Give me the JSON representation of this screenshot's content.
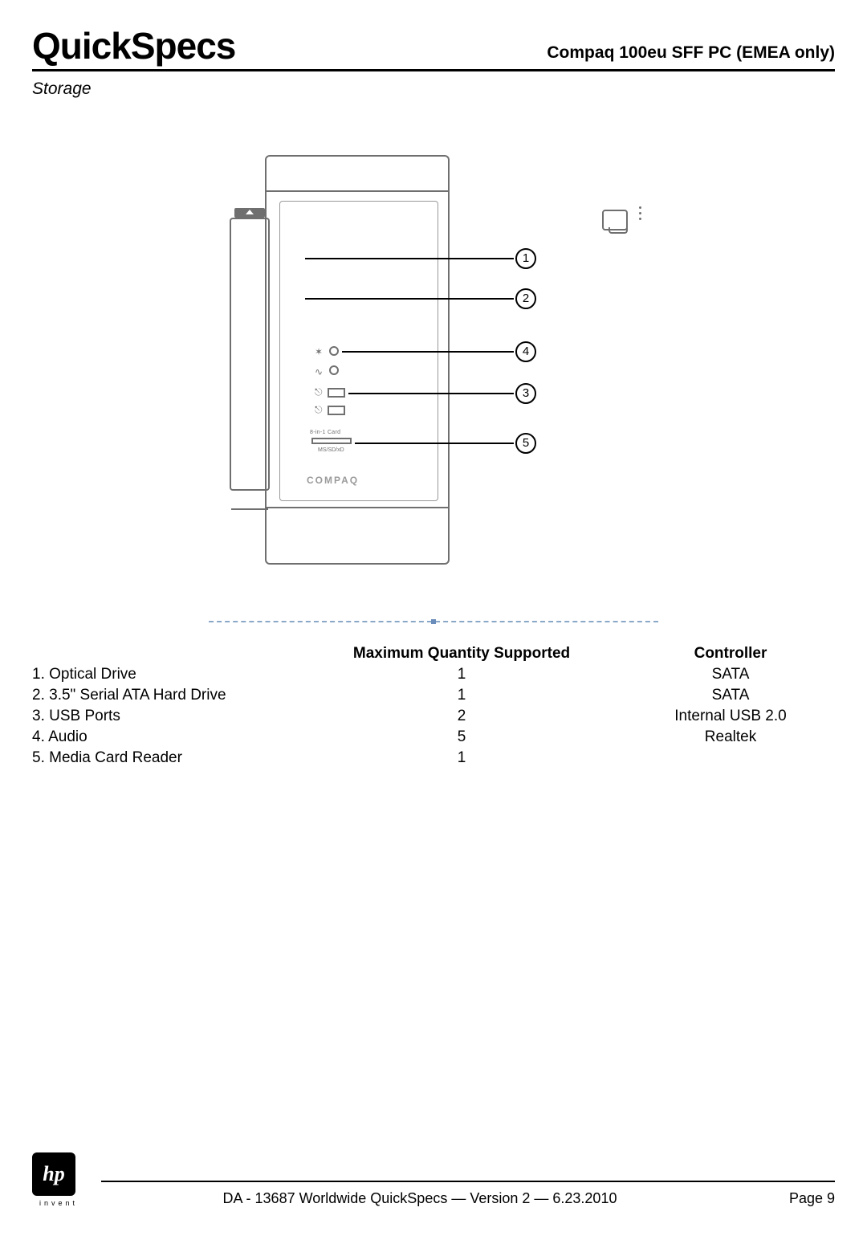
{
  "header": {
    "title_left": "QuickSpecs",
    "title_right": "Compaq 100eu SFF PC (EMEA only)",
    "section": "Storage"
  },
  "diagram": {
    "brand_text": "COMPAQ",
    "mcr_top_label": "8-in-1 Card",
    "mcr_sub_label": "MS/SD/xD",
    "callouts": [
      {
        "num": "1"
      },
      {
        "num": "2"
      },
      {
        "num": "3"
      },
      {
        "num": "4"
      },
      {
        "num": "5"
      }
    ]
  },
  "table": {
    "headers": {
      "component": "",
      "qty": "Maximum Quantity Supported",
      "controller": "Controller"
    },
    "rows": [
      {
        "component": "1. Optical Drive",
        "qty": "1",
        "controller": "SATA"
      },
      {
        "component": "2. 3.5\" Serial ATA Hard Drive",
        "qty": "1",
        "controller": "SATA"
      },
      {
        "component": "3. USB Ports",
        "qty": "2",
        "controller": "Internal USB 2.0"
      },
      {
        "component": "4. Audio",
        "qty": "5",
        "controller": "Realtek"
      },
      {
        "component": "5. Media Card Reader",
        "qty": "1",
        "controller": ""
      }
    ]
  },
  "footer": {
    "logo_text": "hp",
    "invent": "invent",
    "center": "DA - 13687   Worldwide QuickSpecs — Version 2 — 6.23.2010",
    "page": "Page 9"
  },
  "colors": {
    "rule": "#000000",
    "diagram_stroke": "#6f6f6f",
    "dashed": "#8aa8c8"
  }
}
